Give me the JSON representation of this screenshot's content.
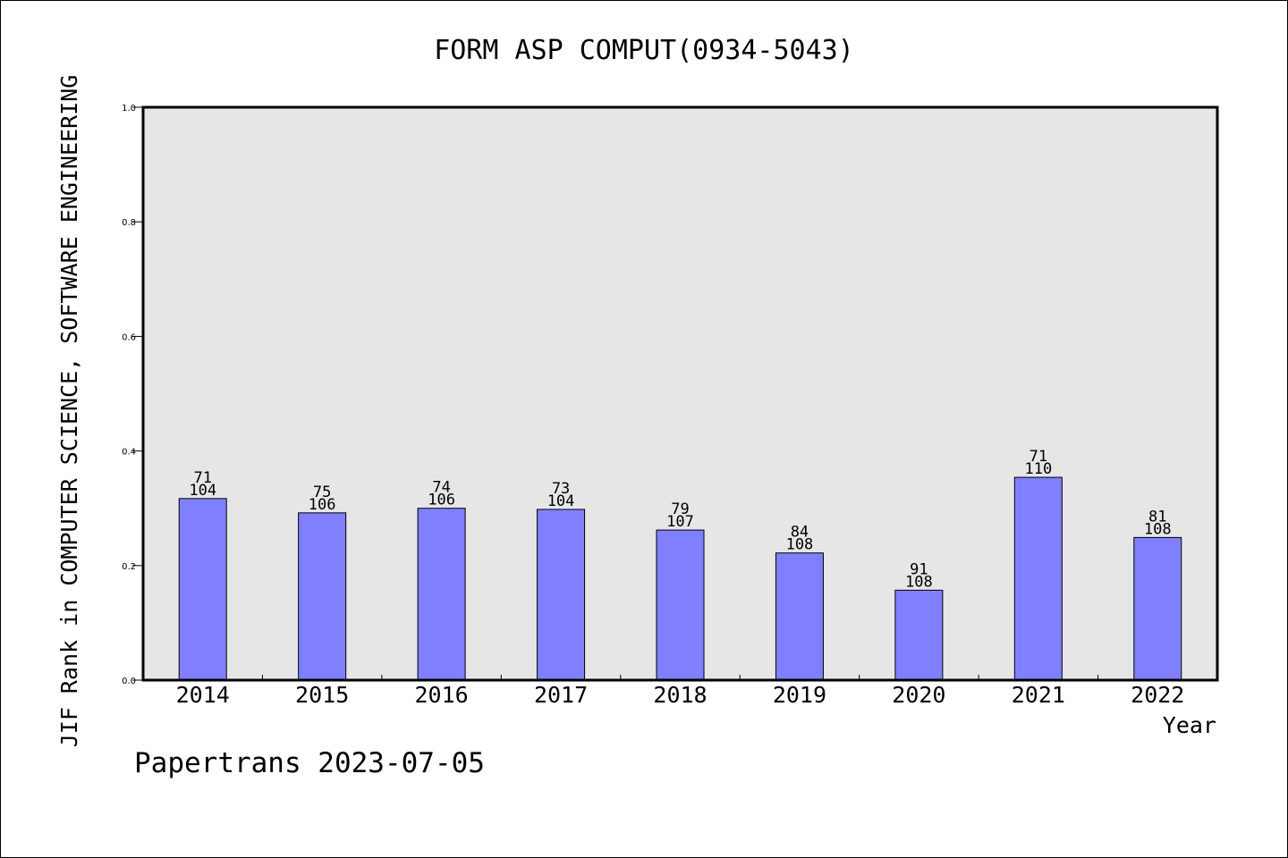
{
  "chart_data": {
    "type": "bar",
    "title": "FORM ASP COMPUT(0934-5043)",
    "xlabel": "Year",
    "ylabel": "JIF Rank in COMPUTER SCIENCE, SOFTWARE ENGINEERING",
    "ylim": [
      0.0,
      1.0
    ],
    "yticks": [
      "0.0",
      "0.2",
      "0.4",
      "0.6",
      "0.8",
      "1.0"
    ],
    "categories": [
      "2014",
      "2015",
      "2016",
      "2017",
      "2018",
      "2019",
      "2020",
      "2021",
      "2022"
    ],
    "values": [
      0.317,
      0.292,
      0.3,
      0.298,
      0.262,
      0.222,
      0.157,
      0.354,
      0.249
    ],
    "rank": [
      "71",
      "75",
      "74",
      "73",
      "79",
      "84",
      "91",
      "71",
      "81"
    ],
    "total": [
      "104",
      "106",
      "106",
      "104",
      "107",
      "108",
      "108",
      "110",
      "108"
    ],
    "bar_color": "#8080ff",
    "plot_background": "#e6e6e6",
    "grid": false,
    "legend": "none"
  },
  "footer": "Papertrans 2023-07-05"
}
